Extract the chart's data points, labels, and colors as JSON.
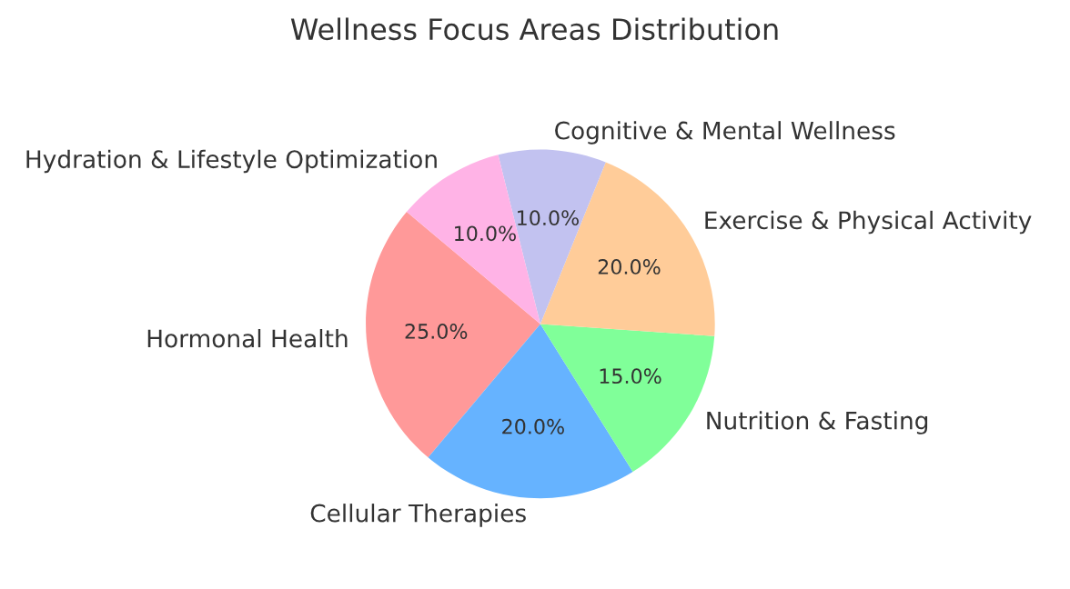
{
  "chart_data": {
    "type": "pie",
    "title": "Wellness Focus Areas Distribution",
    "categories": [
      "Hormonal Health",
      "Cellular Therapies",
      "Nutrition & Fasting",
      "Exercise & Physical Activity",
      "Cognitive & Mental Wellness",
      "Hydration & Lifestyle Optimization"
    ],
    "values": [
      25,
      20,
      15,
      20,
      10,
      10
    ],
    "value_labels": [
      "25.0%",
      "20.0%",
      "15.0%",
      "20.0%",
      "10.0%",
      "10.0%"
    ],
    "colors": [
      "#ff9999",
      "#66b3ff",
      "#80ff99",
      "#ffcc99",
      "#c2c2f0",
      "#ffb3e6"
    ],
    "legend": false
  }
}
